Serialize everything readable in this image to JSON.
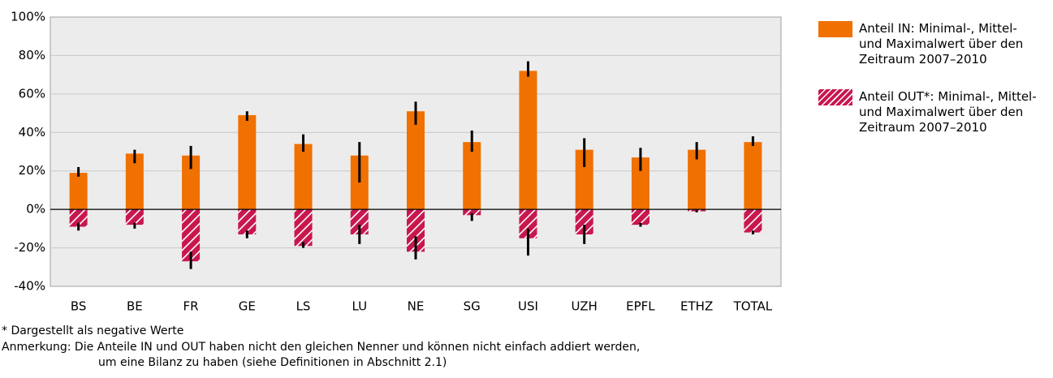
{
  "chart_data": {
    "type": "bar",
    "categories": [
      "BS",
      "BE",
      "FR",
      "GE",
      "LS",
      "LU",
      "NE",
      "SG",
      "USI",
      "UZH",
      "EPFL",
      "ETHZ",
      "TOTAL"
    ],
    "series": [
      {
        "name": "Anteil IN: Minimal-, Mittel- und Maximalwert über den Zeitraum 2007–2010",
        "color": "#f07000",
        "pattern": "solid",
        "values": [
          19,
          29,
          28,
          49,
          34,
          28,
          51,
          35,
          72,
          31,
          27,
          31,
          35
        ],
        "min": [
          17,
          24,
          21,
          46,
          30,
          14,
          44,
          30,
          69,
          22,
          20,
          26,
          33
        ],
        "max": [
          22,
          31,
          33,
          51,
          39,
          35,
          56,
          41,
          77,
          37,
          32,
          35,
          38
        ]
      },
      {
        "name": "Anteil OUT*: Minimal-, Mittel- und Maximalwert über den Zeitraum 2007–2010",
        "color": "#c8174f",
        "pattern": "hatch",
        "values": [
          -9,
          -8,
          -27,
          -13,
          -19,
          -13,
          -22,
          -3,
          -15,
          -13,
          -8,
          -1,
          -12
        ],
        "min": [
          -11,
          -10,
          -31,
          -15,
          -20,
          -18,
          -26,
          -6,
          -24,
          -18,
          -9,
          -1.5,
          -13
        ],
        "max": [
          -7,
          -7,
          -22,
          -11,
          -17,
          -8,
          -14,
          -2,
          -10,
          -8,
          -7,
          -0.5,
          -11
        ]
      }
    ],
    "ylim": [
      -40,
      100
    ],
    "yticks": [
      {
        "value": -40,
        "label": "-40%"
      },
      {
        "value": -20,
        "label": "-20%"
      },
      {
        "value": 0,
        "label": "0%"
      },
      {
        "value": 20,
        "label": "20%"
      },
      {
        "value": 40,
        "label": "40%"
      },
      {
        "value": 60,
        "label": "60%"
      },
      {
        "value": 80,
        "label": "80%"
      },
      {
        "value": 100,
        "label": "100%"
      }
    ],
    "grid": true,
    "legend": "right",
    "footnote": "* Dargestellt als negative Werte",
    "note": [
      "Anmerkung: Die Anteile IN und OUT haben nicht den gleichen Nenner und können nicht einfach addiert werden,",
      "um eine Bilanz zu haben (siehe Definitionen in Abschnitt 2.1)"
    ]
  }
}
